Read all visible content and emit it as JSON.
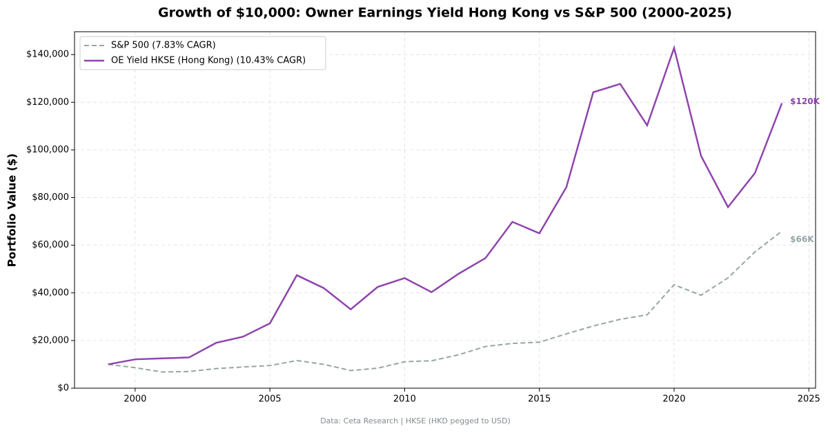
{
  "chart_data": {
    "type": "line",
    "title": "Growth of $10,000: Owner Earnings Yield Hong Kong vs S&P 500 (2000-2025)",
    "ylabel": "Portfolio Value ($)",
    "source": "Data: Ceta Research | HKSE (HKD pegged to USD)",
    "x": [
      1999,
      2000,
      2001,
      2002,
      2003,
      2004,
      2005,
      2006,
      2007,
      2008,
      2009,
      2010,
      2011,
      2012,
      2013,
      2014,
      2015,
      2016,
      2017,
      2018,
      2019,
      2020,
      2021,
      2022,
      2023,
      2024
    ],
    "series": [
      {
        "name": "S&P 500 (7.83% CAGR)",
        "color": "#95a5a6",
        "linestyle": "dashed",
        "values": [
          10000,
          8600,
          6800,
          7000,
          8200,
          8900,
          9500,
          11600,
          10000,
          7400,
          8400,
          11100,
          11500,
          14000,
          17500,
          18800,
          19300,
          22800,
          26100,
          28900,
          30800,
          43400,
          39000,
          46300,
          57200,
          65900
        ],
        "value_labels": [
          null,
          null,
          null,
          null,
          null,
          null,
          null,
          null,
          null,
          null,
          null,
          null,
          null,
          null,
          null,
          null,
          null,
          null,
          null,
          null,
          null,
          null,
          null,
          null,
          null,
          "$66K"
        ]
      },
      {
        "name": "OE Yield HKSE (Hong Kong) (10.43% CAGR)",
        "color": "#8e44ad",
        "linestyle": "solid",
        "values": [
          10000,
          12100,
          12500,
          12900,
          19000,
          21600,
          27200,
          47400,
          42000,
          33100,
          42500,
          46200,
          40300,
          48000,
          54600,
          69800,
          65000,
          84300,
          124200,
          127700,
          110300,
          142800,
          97500,
          76000,
          90300,
          119600
        ],
        "value_labels": [
          null,
          null,
          null,
          null,
          null,
          null,
          null,
          null,
          null,
          null,
          null,
          null,
          null,
          null,
          null,
          null,
          null,
          null,
          null,
          null,
          null,
          null,
          null,
          null,
          null,
          "$120K"
        ]
      }
    ],
    "xlim": [
      1997.75,
      2025.25
    ],
    "xticks": [
      2000,
      2005,
      2010,
      2015,
      2020,
      2025
    ],
    "ylim": [
      0,
      149600
    ],
    "yticks": [
      {
        "value": 0,
        "label": "$0"
      },
      {
        "value": 20000,
        "label": "$20,000"
      },
      {
        "value": 40000,
        "label": "$40,000"
      },
      {
        "value": 60000,
        "label": "$60,000"
      },
      {
        "value": 80000,
        "label": "$80,000"
      },
      {
        "value": 100000,
        "label": "$100,000"
      },
      {
        "value": 120000,
        "label": "$120,000"
      },
      {
        "value": 140000,
        "label": "$140,000"
      }
    ],
    "grid": true,
    "legend": "upper left"
  }
}
